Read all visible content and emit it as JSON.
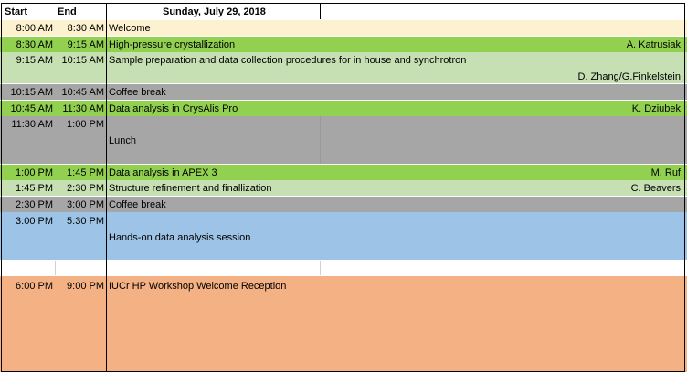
{
  "header": {
    "start": "Start",
    "end": "End",
    "day": "Sunday, July 29, 2018"
  },
  "colors": {
    "welcome": "#fdf2d0",
    "talk_dark": "#92d050",
    "talk_light": "#c6e0b4",
    "break": "#a6a6a6",
    "session": "#9dc3e6",
    "reception": "#f4b183",
    "blank": "#ffffff"
  },
  "rows": [
    {
      "start": "8:00 AM",
      "end": "8:30 AM",
      "title": "Welcome",
      "speaker": ""
    },
    {
      "start": "8:30 AM",
      "end": "9:15 AM",
      "title": "High-pressure crystallization",
      "speaker": "A. Katrusiak"
    },
    {
      "start": "9:15 AM",
      "end": "10:15 AM",
      "title": "Sample preparation and data collection procedures for in house and synchrotron",
      "speaker": "D. Zhang/G.Finkelstein"
    },
    {
      "start": "10:15 AM",
      "end": "10:45 AM",
      "title": "Coffee break",
      "speaker": ""
    },
    {
      "start": "10:45 AM",
      "end": "11:30 AM",
      "title": "Data analysis in CrysAlis Pro",
      "speaker": "K. Dziubek"
    },
    {
      "start": "11:30 AM",
      "end": "1:00 PM",
      "title": "Lunch",
      "speaker": ""
    },
    {
      "start": "1:00 PM",
      "end": "1:45 PM",
      "title": "Data analysis in APEX 3",
      "speaker": "M. Ruf"
    },
    {
      "start": "1:45 PM",
      "end": "2:30 PM",
      "title": "Structure refinement and finallization",
      "speaker": "C. Beavers"
    },
    {
      "start": "2:30 PM",
      "end": "3:00 PM",
      "title": "Coffee break",
      "speaker": ""
    },
    {
      "start": "3:00 PM",
      "end": "5:30 PM",
      "title": "Hands-on data analysis session",
      "speaker": ""
    },
    {
      "start": "6:00 PM",
      "end": "9:00 PM",
      "title": "IUCr HP Workshop Welcome Reception",
      "speaker": ""
    }
  ]
}
